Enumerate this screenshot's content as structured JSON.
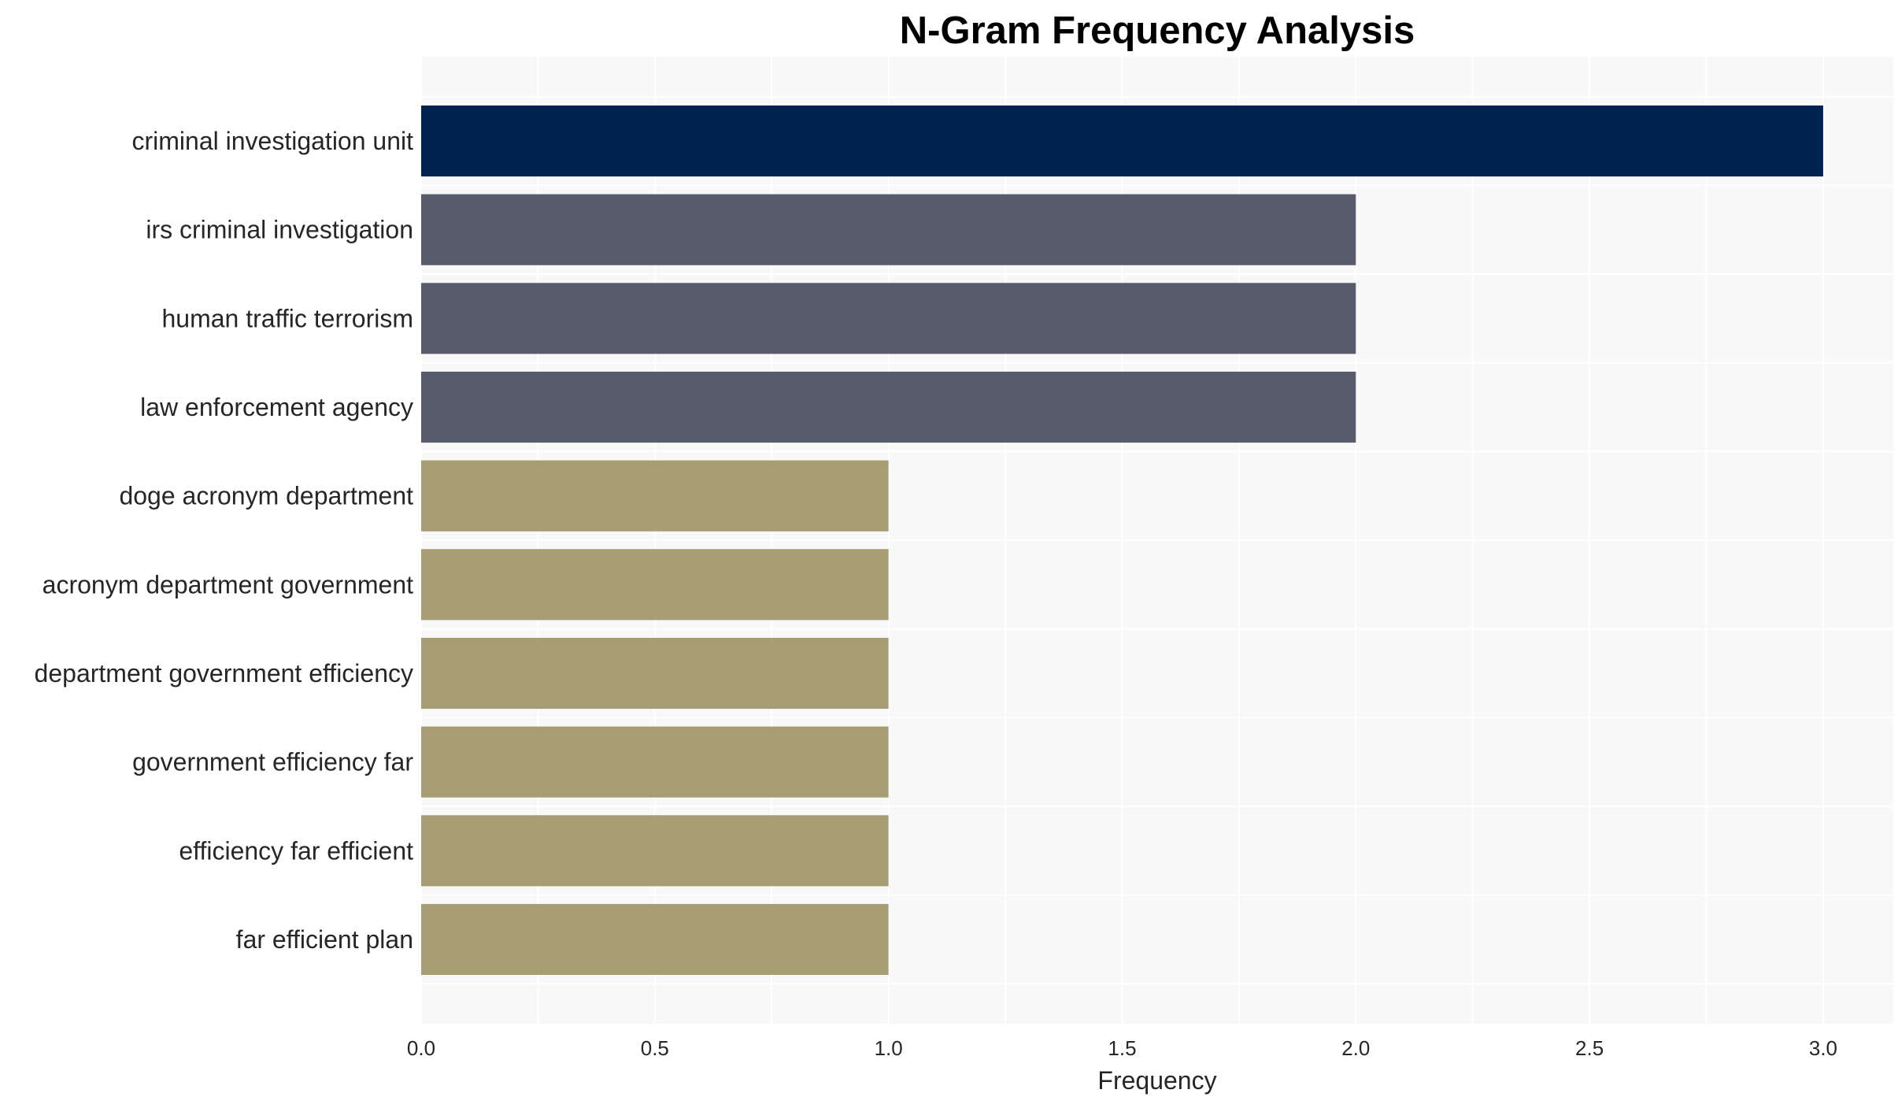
{
  "chart_data": {
    "type": "bar",
    "orientation": "horizontal",
    "title": "N-Gram Frequency Analysis",
    "xlabel": "Frequency",
    "ylabel": "",
    "xlim": [
      0,
      3.15
    ],
    "xticks": [
      0.0,
      0.5,
      1.0,
      1.5,
      2.0,
      2.5,
      3.0
    ],
    "xtick_labels": [
      "0.0",
      "0.5",
      "1.0",
      "1.5",
      "2.0",
      "2.5",
      "3.0"
    ],
    "grid": true,
    "legend": "none",
    "categories": [
      "criminal investigation unit",
      "irs criminal investigation",
      "human traffic terrorism",
      "law enforcement agency",
      "doge acronym department",
      "acronym department government",
      "department government efficiency",
      "government efficiency far",
      "efficiency far efficient",
      "far efficient plan"
    ],
    "values": [
      3,
      2,
      2,
      2,
      1,
      1,
      1,
      1,
      1,
      1
    ],
    "colors": [
      "#00224e",
      "#575d6d",
      "#575d6d",
      "#575d6d",
      "#a69d75",
      "#a69d75",
      "#a69d75",
      "#a69d75",
      "#a69d75",
      "#a69d75"
    ],
    "plot_background": "#f8f8f8",
    "grid_color": "#ffffff"
  }
}
